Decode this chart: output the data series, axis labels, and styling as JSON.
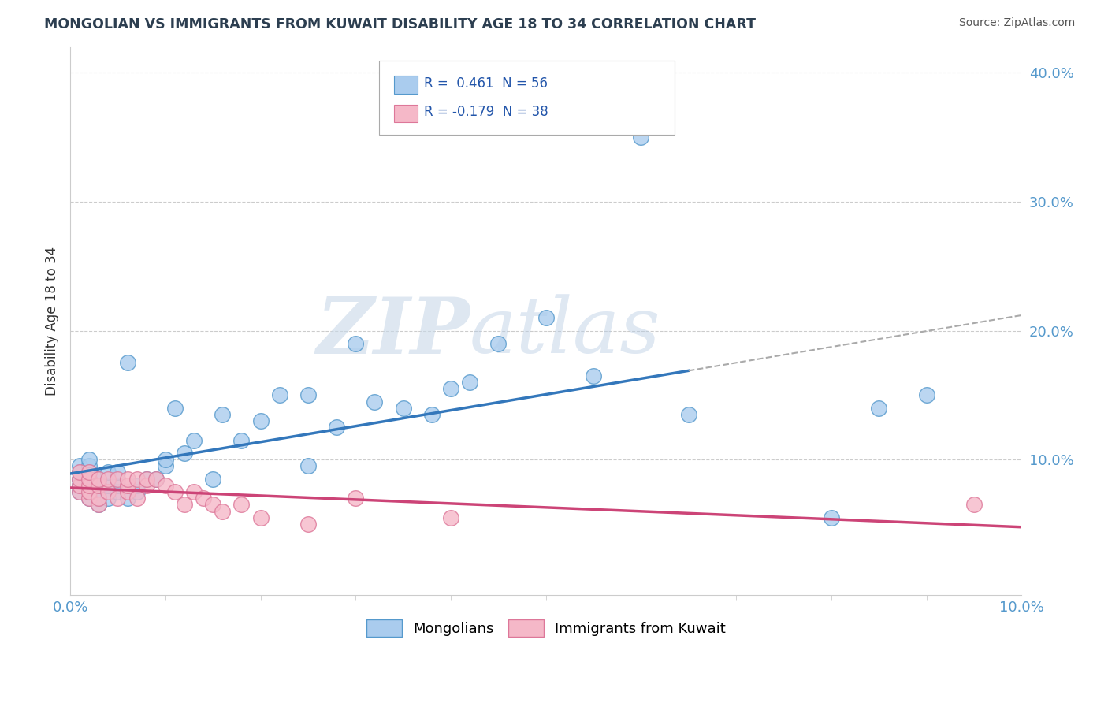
{
  "title": "MONGOLIAN VS IMMIGRANTS FROM KUWAIT DISABILITY AGE 18 TO 34 CORRELATION CHART",
  "source": "Source: ZipAtlas.com",
  "ylabel": "Disability Age 18 to 34",
  "xlim": [
    0.0,
    0.1
  ],
  "ylim": [
    -0.005,
    0.42
  ],
  "mongolian_R": 0.461,
  "mongolian_N": 56,
  "kuwait_R": -0.179,
  "kuwait_N": 38,
  "mongolian_color": "#aaccee",
  "mongolian_edge_color": "#5599cc",
  "mongolian_line_color": "#3377bb",
  "kuwait_color": "#f5b8c8",
  "kuwait_edge_color": "#dd7799",
  "kuwait_line_color": "#cc4477",
  "legend_label_mongolian": "Mongolians",
  "legend_label_kuwait": "Immigrants from Kuwait",
  "watermark_zip": "ZIP",
  "watermark_atlas": "atlas",
  "background_color": "#ffffff",
  "grid_color": "#cccccc",
  "ytick_color": "#5599cc",
  "xtick_color": "#5599cc",
  "mongolian_x": [
    0.001,
    0.001,
    0.001,
    0.001,
    0.001,
    0.002,
    0.002,
    0.002,
    0.002,
    0.002,
    0.002,
    0.002,
    0.003,
    0.003,
    0.003,
    0.003,
    0.003,
    0.004,
    0.004,
    0.004,
    0.005,
    0.005,
    0.005,
    0.006,
    0.006,
    0.007,
    0.007,
    0.008,
    0.009,
    0.01,
    0.01,
    0.011,
    0.012,
    0.013,
    0.015,
    0.016,
    0.018,
    0.02,
    0.022,
    0.025,
    0.025,
    0.028,
    0.03,
    0.032,
    0.035,
    0.038,
    0.04,
    0.042,
    0.045,
    0.05,
    0.055,
    0.06,
    0.065,
    0.08,
    0.085,
    0.09
  ],
  "mongolian_y": [
    0.075,
    0.08,
    0.085,
    0.09,
    0.095,
    0.07,
    0.075,
    0.08,
    0.085,
    0.09,
    0.095,
    0.1,
    0.065,
    0.07,
    0.075,
    0.08,
    0.085,
    0.07,
    0.08,
    0.09,
    0.075,
    0.08,
    0.09,
    0.07,
    0.175,
    0.075,
    0.08,
    0.085,
    0.085,
    0.095,
    0.1,
    0.14,
    0.105,
    0.115,
    0.085,
    0.135,
    0.115,
    0.13,
    0.15,
    0.095,
    0.15,
    0.125,
    0.19,
    0.145,
    0.14,
    0.135,
    0.155,
    0.16,
    0.19,
    0.21,
    0.165,
    0.35,
    0.135,
    0.055,
    0.14,
    0.15
  ],
  "kuwait_x": [
    0.001,
    0.001,
    0.001,
    0.001,
    0.002,
    0.002,
    0.002,
    0.002,
    0.002,
    0.003,
    0.003,
    0.003,
    0.003,
    0.004,
    0.004,
    0.005,
    0.005,
    0.006,
    0.006,
    0.006,
    0.007,
    0.007,
    0.008,
    0.008,
    0.009,
    0.01,
    0.011,
    0.012,
    0.013,
    0.014,
    0.015,
    0.016,
    0.018,
    0.02,
    0.025,
    0.03,
    0.04,
    0.095
  ],
  "kuwait_y": [
    0.075,
    0.08,
    0.085,
    0.09,
    0.07,
    0.075,
    0.08,
    0.085,
    0.09,
    0.065,
    0.07,
    0.08,
    0.085,
    0.075,
    0.085,
    0.07,
    0.085,
    0.075,
    0.08,
    0.085,
    0.07,
    0.085,
    0.08,
    0.085,
    0.085,
    0.08,
    0.075,
    0.065,
    0.075,
    0.07,
    0.065,
    0.06,
    0.065,
    0.055,
    0.05,
    0.07,
    0.055,
    0.065
  ]
}
